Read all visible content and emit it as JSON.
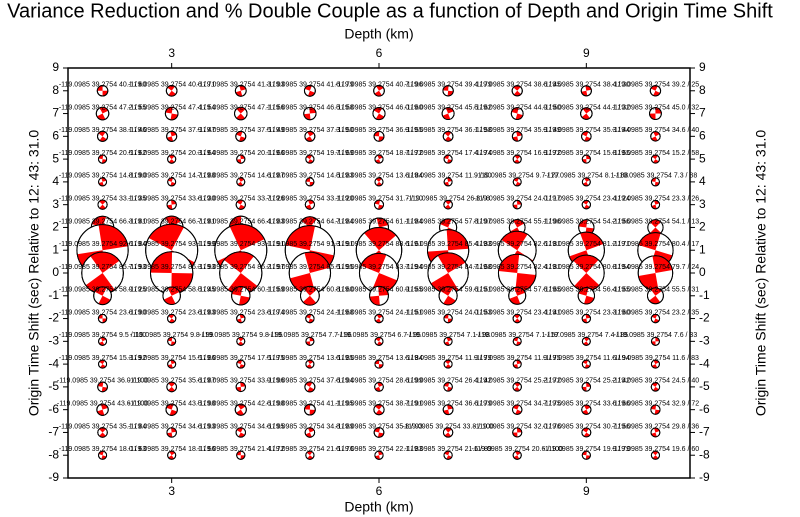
{
  "chart_data": {
    "type": "beachball",
    "title": "Variance Reduction and % Double Couple as a function of Depth and Origin Time Shift",
    "xlabel": "Depth (km)",
    "ylabel": "Origin Time Shift (sec) Relative to 12: 43: 31.0",
    "xlim": [
      1.5,
      10.5
    ],
    "ylim": [
      -9,
      9
    ],
    "xticks": [
      3,
      6,
      9
    ],
    "yticks": [
      -9,
      -8,
      -7,
      -6,
      -5,
      -4,
      -3,
      -2,
      -1,
      0,
      1,
      2,
      3,
      4,
      5,
      6,
      7,
      8,
      9
    ],
    "x": [
      2,
      3,
      4,
      5,
      6,
      7,
      8,
      9,
      10
    ],
    "y": [
      8,
      7,
      6,
      5,
      4,
      3,
      2,
      1,
      0,
      -1,
      -2,
      -3,
      -4,
      -5,
      -6,
      -7,
      -8
    ],
    "color": "#ff0000",
    "values": [
      [
        40.1,
        40.6,
        41.3,
        41.6,
        40.7,
        39.4,
        38.6,
        38.4,
        39.2
      ],
      [
        47.2,
        47.4,
        47.1,
        46.5,
        46.0,
        45.5,
        44.9,
        44.1,
        45.0
      ],
      [
        38.1,
        37.9,
        37.5,
        37.3,
        36.9,
        36.1,
        35.9,
        35.3,
        34.6
      ],
      [
        20.5,
        20.3,
        20.1,
        19.7,
        18.7,
        17.4,
        16.9,
        15.8,
        15.2
      ],
      [
        14.8,
        14.7,
        14.6,
        14.5,
        13.6,
        11.9,
        9.7,
        8.1,
        7.3
      ],
      [
        33.1,
        33.6,
        33.7,
        33.1,
        31.7,
        26.8,
        24.0,
        23.4,
        23.3
      ],
      [
        66.3,
        66.7,
        66.4,
        64.7,
        61.1,
        57.8,
        55.1,
        54.2,
        54.1
      ],
      [
        92.6,
        93.1,
        93.1,
        91.3,
        88.6,
        85.4,
        82.6,
        81.2,
        80.4
      ],
      [
        85.7,
        86.3,
        86.2,
        85.5,
        83.7,
        84.7,
        82.4,
        80.8,
        79.7
      ],
      [
        58.9,
        58.5,
        60.1,
        60.8,
        60.9,
        59.6,
        57.6,
        56.4,
        55.5
      ],
      [
        23.6,
        23.6,
        23.6,
        24.1,
        24.1,
        24.0,
        23.4,
        23.3,
        23.2
      ],
      [
        9.5,
        9.8,
        9.8,
        7.7,
        6.7,
        7.1,
        7.1,
        7.4,
        7.6
      ],
      [
        15.3,
        15.5,
        17.5,
        13.6,
        13.6,
        11.9,
        11.9,
        11.6,
        11.6
      ],
      [
        36.0,
        35.6,
        33.9,
        37.6,
        28.6,
        26.4,
        25.2,
        25.2,
        24.5
      ],
      [
        43.6,
        43.5,
        42.6,
        41.1,
        38.7,
        36.6,
        34.7,
        33.6,
        32.9
      ],
      [
        35.1,
        34.6,
        34.6,
        34.8,
        35.8,
        33.8,
        32.0,
        30.7,
        29.8
      ],
      [
        18.0,
        18.1,
        21.4,
        21.6,
        22.1,
        21.6,
        20.6,
        19.9,
        19.6
      ]
    ],
    "labels": [
      [
        "-119.0985 39.2754 40.1 / 60",
        "-119.0985 39.2754 40.6 / 71",
        "-119.0985 39.2754 41.3 / 93",
        "-119.0985 39.2754 41.6 / 79",
        "-119.0985 39.2754 40.7 / 96",
        "-119.0985 39.2754 39.4 / 79",
        "-119.0985 39.2754 38.6 / 45",
        "-119.0985 39.2754 38.4 / 30",
        "-119.0985 39.2754 39.2 / 25"
      ],
      [
        "-119.0985 39.2754 47.2 / 55",
        "-119.0985 39.2754 47.4 / 54",
        "-119.0985 39.2754 47.1 / 56",
        "-119.0985 39.2754 46.5 / 58",
        "-119.0985 39.2754 46.0 / 60",
        "-119.0985 39.2754 45.5 / 62",
        "-119.0985 39.2754 44.9 / 50",
        "-119.0985 39.2754 44.1 / 32",
        "-119.0985 39.2754 45.0 / 32"
      ],
      [
        "-119.0985 39.2754 38.1 / 46",
        "-119.0985 39.2754 37.9 / 47",
        "-119.0985 39.2754 37.5 / 49",
        "-119.0985 39.2754 37.3 / 50",
        "-119.0985 39.2754 36.9 / 55",
        "-119.0985 39.2754 36.1 / 58",
        "-119.0985 39.2754 35.9 / 49",
        "-119.0985 39.2754 35.3 / 44",
        "-119.0985 39.2754 34.6 / 40"
      ],
      [
        "-119.0985 39.2754 20.5 / 62",
        "-119.0985 39.2754 20.3 / 64",
        "-119.0985 39.2754 20.1 / 66",
        "-119.0985 39.2754 19.7 / 69",
        "-119.0985 39.2754 18.7 / 72",
        "-119.0985 39.2754 17.4 / 74",
        "-119.0985 39.2754 16.9 / 72",
        "-119.0985 39.2754 15.8 / 65",
        "-119.0985 39.2754 15.2 / 58"
      ],
      [
        "-119.0985 39.2754 14.8 / 90",
        "-119.0985 39.2754 14.7 / 88",
        "-119.0985 39.2754 14.6 / 87",
        "-119.0985 39.2754 14.5 / 83",
        "-119.0985 39.2754 13.6 / 84",
        "-119.0985 39.2754 11.9 / 80",
        "-119.0985 39.2754 9.7 / 77",
        "-119.0985 39.2754 8.1 / 88",
        "-119.0985 39.2754 7.3 / 88"
      ],
      [
        "-119.0985 39.2754 33.1 / 35",
        "-119.0985 39.2754 33.6 / 30",
        "-119.0985 39.2754 33.7 / 26",
        "-119.0985 39.2754 33.1 / 20",
        "-119.0985 39.2754 31.7 / 10",
        "-119.0985 39.2754 26.8 / 8",
        "-119.0985 39.2754 24.0 / 17",
        "-119.0985 39.2754 23.4 / 24",
        "-119.0985 39.2754 23.3 / 26"
      ],
      [
        "-119.0985 39.2754 66.3 / 81",
        "-119.0985 39.2754 66.7 / 81",
        "-119.0985 39.2754 66.4 / 83",
        "-119.0985 39.2754 64.7 / 84",
        "-119.0985 39.2754 61.1 / 84",
        "-119.0985 39.2754 57.8 / 97",
        "-119.0985 39.2754 55.1 / 96",
        "-119.0985 39.2754 54.2 / 56",
        "-119.0985 39.2754 54.1 / 13"
      ],
      [
        "-119.0985 39.2754 92.6 / 84",
        "-119.0985 39.2754 93.1 / 99",
        "-119.0985 39.2754 93.1 / 91",
        "-119.0985 39.2754 91.3 / 91",
        "-119.0985 39.2754 88.6 / 61",
        "-119.0985 39.2754 85.4 / 83",
        "-119.0985 39.2754 82.6 / 81",
        "-119.0985 39.2754 81.2 / 71",
        "-119.0985 39.2754 80.4 / 17"
      ],
      [
        "-119.0985 39.2754 85.7 / 93",
        "-119.0985 39.2754 86.3 / 93",
        "-119.0985 39.2754 86.2 / 97",
        "-119.0985 39.2754 85.5 / 95",
        "-119.0985 39.2754 83.7 / 94",
        "-119.0985 39.2754 84.7 / 68",
        "-119.0985 39.2754 82.4 / 81",
        "-119.0985 39.2754 80.8 / 54",
        "-119.0985 39.2754 79.7 / 24"
      ],
      [
        "-119.0985 39.2754 58.9 / 25",
        "-119.0985 39.2754 58.5 / 45",
        "-119.0985 39.2754 60.1 / 59",
        "-119.0985 39.2754 60.8 / 60",
        "-119.0985 39.2754 60.9 / 55",
        "-119.0985 39.2754 59.6 / 51",
        "-119.0985 39.2754 57.6 / 65",
        "-119.0985 39.2754 56.4 / 55",
        "-119.0985 39.2754 55.5 / 31"
      ],
      [
        "-119.0985 39.2754 23.6 / 90",
        "-119.0985 39.2754 23.6 / 83",
        "-119.0985 39.2754 23.6 / 74",
        "-119.0985 39.2754 24.1 / 68",
        "-119.0985 39.2754 24.1 / 51",
        "-119.0985 39.2754 24.0 / 53",
        "-119.0985 39.2754 23.4 / 41",
        "-119.0985 39.2754 23.3 / 60",
        "-119.0985 39.2754 23.2 / 35"
      ],
      [
        "-119.0985 39.2754 9.5 / 100",
        "-119.0985 39.2754 9.8 / 99",
        "-119.0985 39.2754 9.8 / 95",
        "-119.0985 39.2754 7.7 / 96",
        "-119.0985 39.2754 6.7 / 95",
        "-119.0985 39.2754 7.1 / 98",
        "-119.0985 39.2754 7.1 / 57",
        "-119.0985 39.2754 7.4 / 85",
        "-119.0985 39.2754 7.6 / 33"
      ],
      [
        "-119.0985 39.2754 15.3 / 92",
        "-119.0985 39.2754 15.5 / 86",
        "-119.0985 39.2754 17.5 / 75",
        "-119.0985 39.2754 13.6 / 85",
        "-119.0985 39.2754 13.6 / 84",
        "-119.0985 39.2754 11.9 / 79",
        "-119.0985 39.2754 11.9 / 75",
        "-119.0985 39.2754 11.6 / 94",
        "-119.0985 39.2754 11.6 / 83"
      ],
      [
        "-119.0985 39.2754 36.0 / 100",
        "-119.0985 39.2754 35.6 / 87",
        "-119.0985 39.2754 33.9 / 96",
        "-119.0985 39.2754 37.6 / 94",
        "-119.0985 39.2754 28.6 / 99",
        "-119.0985 39.2754 26.4 / 42",
        "-119.0985 39.2754 25.2 / 72",
        "-119.0985 39.2754 25.2 / 42",
        "-119.0985 39.2754 24.5 / 40"
      ],
      [
        "-119.0985 39.2754 43.6 / 100",
        "-119.0985 39.2754 43.5 / 98",
        "-119.0985 39.2754 42.6 / 98",
        "-119.0985 39.2754 41.1 / 95",
        "-119.0985 39.2754 38.7 / 91",
        "-119.0985 39.2754 36.6 / 79",
        "-119.0985 39.2754 34.7 / 75",
        "-119.0985 39.2754 33.6 / 66",
        "-119.0985 39.2754 32.9 / 72"
      ],
      [
        "-119.0985 39.2754 35.1 / 84",
        "-119.0985 39.2754 34.6 / 93",
        "-119.0985 39.2754 34.6 / 95",
        "-119.0985 39.2754 34.8 / 89",
        "-119.0985 39.2754 35.8 / 93",
        "-119.0985 39.2754 33.8 / 100",
        "-119.0985 39.2754 32.0 / 76",
        "-119.0985 39.2754 30.7 / 56",
        "-119.0985 39.2754 29.8 / 36"
      ],
      [
        "-119.0985 39.2754 18.0 / 63",
        "-119.0985 39.2754 18.1 / 56",
        "-119.0985 39.2754 21.4 / 72",
        "-119.0985 39.2754 21.6 / 76",
        "-119.0985 39.2754 22.1 / 83",
        "-119.0985 39.2754 21.6 / 89",
        "-119.0985 39.2754 20.6 / 100",
        "-119.0985 39.2754 19.9 / 79",
        "-119.0985 39.2754 19.6 / 60"
      ]
    ]
  }
}
